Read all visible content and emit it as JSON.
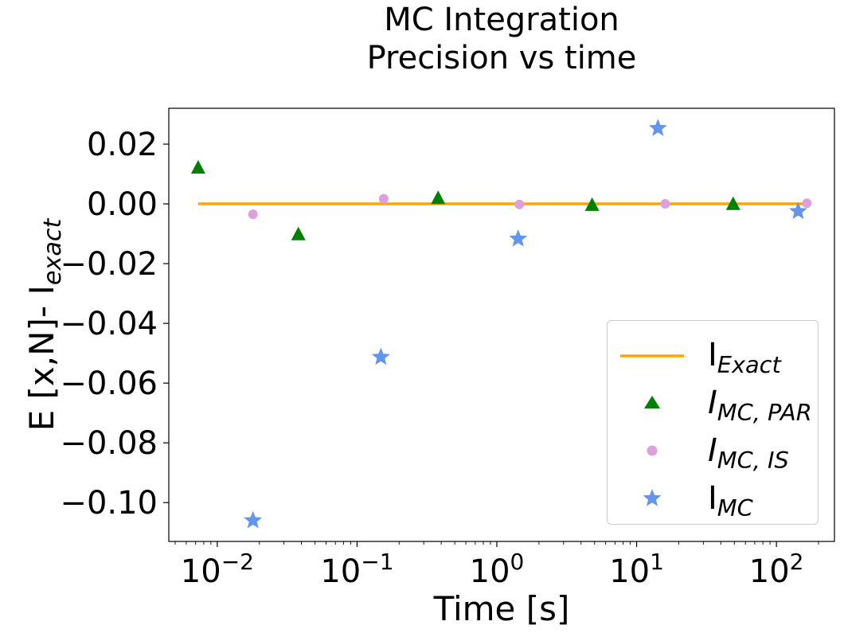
{
  "chart_data": {
    "type": "scatter",
    "title_lines": [
      "MC Integration",
      "Precision vs time"
    ],
    "xlabel": "Time [s]",
    "ylabel_main": "E [x,N]- I",
    "ylabel_sub": "exact",
    "x_scale": "log",
    "xlim": [
      0.0045,
      260
    ],
    "ylim": [
      -0.113,
      0.032
    ],
    "x_ticks": [
      0.01,
      0.1,
      1,
      10,
      100
    ],
    "x_tick_labels": [
      {
        "base": "10",
        "exp": "−2"
      },
      {
        "base": "10",
        "exp": "−1"
      },
      {
        "base": "10",
        "exp": "0"
      },
      {
        "base": "10",
        "exp": "1"
      },
      {
        "base": "10",
        "exp": "2"
      }
    ],
    "y_ticks": [
      0.02,
      0.0,
      -0.02,
      -0.04,
      -0.06,
      -0.08,
      -0.1
    ],
    "y_tick_labels": [
      "0.02",
      "0.00",
      "−0.02",
      "−0.04",
      "−0.06",
      "−0.08",
      "−0.10"
    ],
    "grid": false,
    "legend_position": "lower-right",
    "series": [
      {
        "name_main": "I",
        "name_sub": "Exact",
        "name_italic": false,
        "kind": "line",
        "color": "#ffa500",
        "x": [
          0.0073,
          160
        ],
        "y": [
          0.0,
          0.0
        ]
      },
      {
        "name_main": "I",
        "name_sub": "MC, PAR",
        "name_italic": true,
        "kind": "triangle",
        "color": "#008000",
        "x": [
          0.0073,
          0.038,
          0.38,
          4.8,
          49
        ],
        "y": [
          0.012,
          -0.0103,
          0.0018,
          -0.0005,
          -0.0002
        ]
      },
      {
        "name_main": "I",
        "name_sub": "MC, IS",
        "name_italic": true,
        "kind": "circle",
        "color": "#dda0dd",
        "x": [
          0.018,
          0.155,
          1.45,
          16,
          165
        ],
        "y": [
          -0.0035,
          0.0017,
          -0.0002,
          0.0,
          0.0002
        ]
      },
      {
        "name_main": "I",
        "name_sub": "MC",
        "name_italic": false,
        "kind": "star",
        "color": "#6495ed",
        "x": [
          0.018,
          0.148,
          1.42,
          14.2,
          143
        ],
        "y": [
          -0.106,
          -0.0513,
          -0.0117,
          0.0253,
          -0.0025
        ]
      }
    ]
  }
}
